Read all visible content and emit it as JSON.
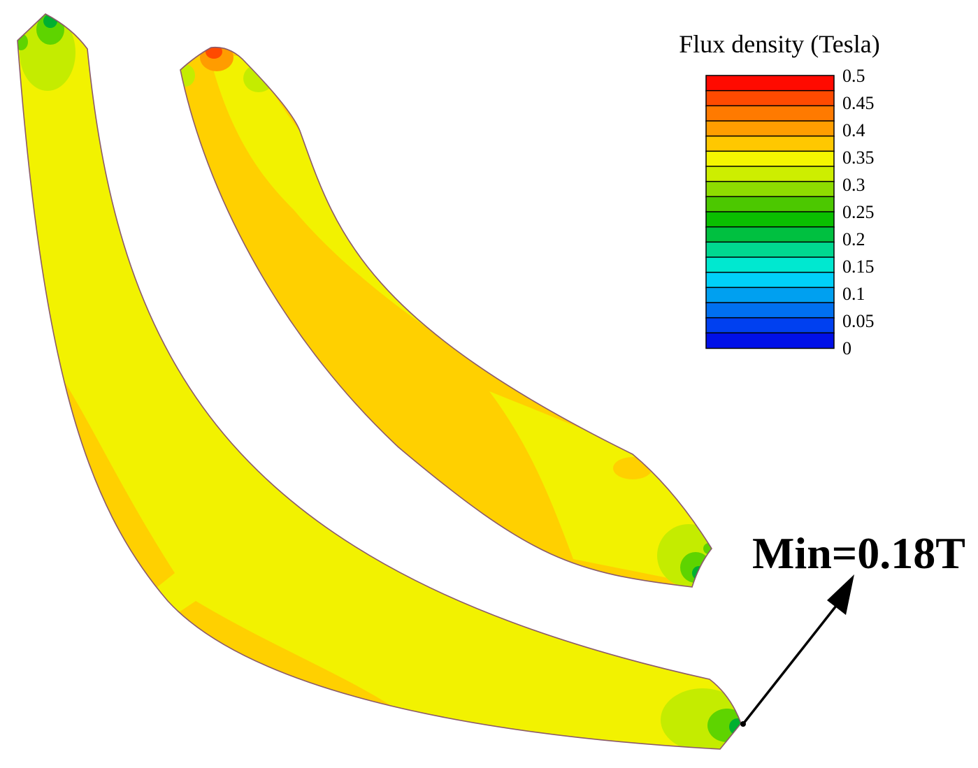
{
  "legend": {
    "title": "Flux density (Tesla)",
    "ticks": [
      "0.5",
      "0.45",
      "0.4",
      "0.35",
      "0.3",
      "0.25",
      "0.2",
      "0.15",
      "0.1",
      "0.05",
      "0"
    ],
    "colors": [
      "#ff0a00",
      "#ff4a00",
      "#ff7a00",
      "#ff9e00",
      "#ffc800",
      "#f5f500",
      "#cdee00",
      "#8edc00",
      "#4cc800",
      "#0abf00",
      "#00c040",
      "#00d890",
      "#00e8d0",
      "#00d0f8",
      "#00a0f0",
      "#0070f0",
      "#0040f0",
      "#0010e8"
    ]
  },
  "annotation": {
    "text": "Min=0.18T"
  },
  "palette": {
    "yellow": "#f2f200",
    "orange_yellow": "#ffd000",
    "light_green": "#c4ec00",
    "green": "#5ed400",
    "dark_green": "#00b030",
    "orange": "#ff9c00",
    "red_orange": "#ff4a00",
    "outline": "#8b5a6a"
  }
}
